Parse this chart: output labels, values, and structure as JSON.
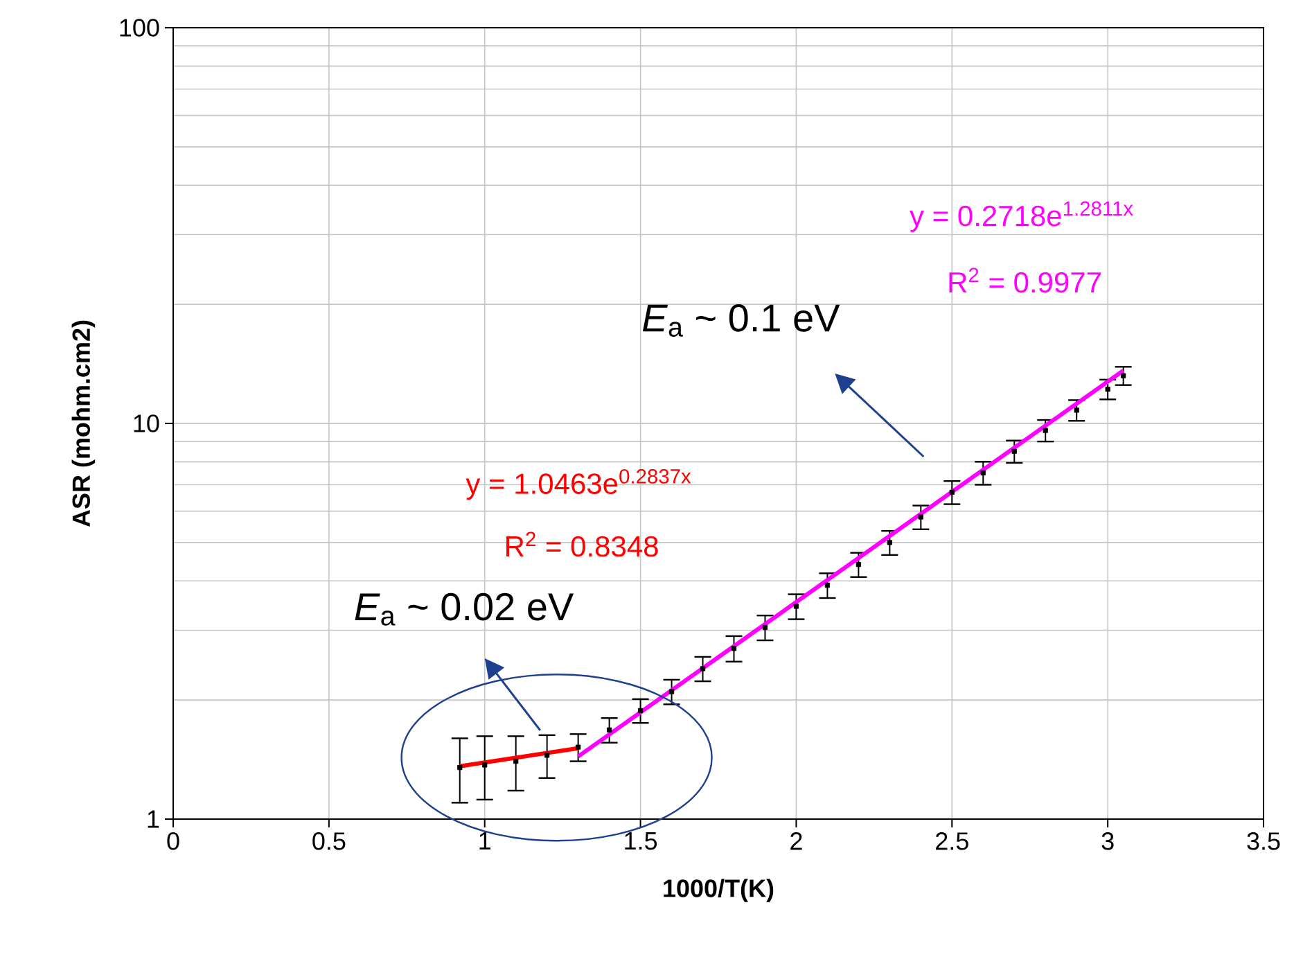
{
  "chart_data": {
    "type": "scatter",
    "xlabel": "1000/T(K)",
    "ylabel": "ASR (mohm.cm2)",
    "log": "y",
    "grid": true,
    "xlim": [
      0,
      3.5
    ],
    "xticks": [
      0,
      0.5,
      1,
      1.5,
      2,
      2.5,
      3,
      3.5
    ],
    "ylim": [
      1,
      100
    ],
    "yticks": [
      1,
      10,
      100
    ],
    "series": [
      {
        "color": "#000000",
        "marker": "square",
        "x": [
          0.92,
          1.0,
          1.1,
          1.2,
          1.3,
          1.4,
          1.5,
          1.6,
          1.7,
          1.8,
          1.9,
          2.0,
          2.1,
          2.2,
          2.3,
          2.4,
          2.5,
          2.6,
          2.7,
          2.8,
          2.9,
          3.0,
          3.05
        ],
        "values": [
          1.35,
          1.37,
          1.4,
          1.45,
          1.52,
          1.68,
          1.88,
          2.1,
          2.4,
          2.7,
          3.05,
          3.45,
          3.9,
          4.4,
          5.0,
          5.8,
          6.7,
          7.5,
          8.5,
          9.6,
          10.8,
          12.2,
          13.2
        ],
        "errors": [
          0.25,
          0.25,
          0.22,
          0.18,
          0.12,
          0.12,
          0.13,
          0.15,
          0.17,
          0.2,
          0.22,
          0.25,
          0.28,
          0.31,
          0.35,
          0.4,
          0.45,
          0.5,
          0.55,
          0.6,
          0.65,
          0.7,
          0.7
        ]
      },
      {
        "type": "line",
        "color": "#ff0000",
        "x": [
          0.92,
          1.3
        ],
        "values": [
          1.36,
          1.51
        ]
      },
      {
        "type": "line",
        "color": "#ff00ff",
        "x": [
          1.3,
          3.05
        ],
        "values": [
          1.44,
          13.6
        ]
      }
    ],
    "annotations": [
      "y = 1.0463e$^{0.2837x}$",
      "R$^{2}$ = 0.8348",
      "y = 0.2718e$^{1.2811x}$",
      "R$^{2}$ = 0.9977",
      "*E*$_{a}$ ~ 0.02 eV",
      "*E*$_{a}$ ~ 0.1 eV"
    ]
  }
}
